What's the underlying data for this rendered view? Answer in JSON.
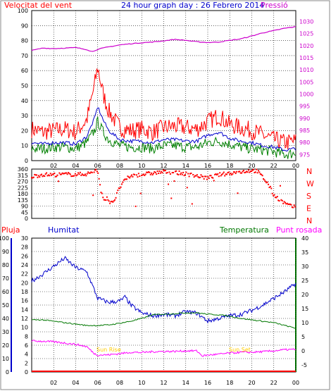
{
  "header": {
    "wind_label": "Velocitat del vent",
    "title": "24 hour graph day : 26 Febrero 2014",
    "pressure_label": "Pressió"
  },
  "lower_header": {
    "rain_label": "Pluja",
    "humidity_label": "Humitat",
    "temperature_label": "Temperatura",
    "dew_label": "Punt rosada"
  },
  "annotations": {
    "sunrise": "Sun Rise",
    "sunset": "Sun Set"
  },
  "colors": {
    "wind_gust": "#ff0000",
    "wind_avg": "#0000cc",
    "wind_min": "#008000",
    "pressure": "#cc00cc",
    "direction": "#ff0000",
    "humidity": "#0000cc",
    "temperature": "#007700",
    "dew": "#ff00ff",
    "rain": "#ff0000",
    "sun": "#ffcc00"
  },
  "chart_data": [
    {
      "type": "line",
      "name": "wind-pressure",
      "x_ticks": [
        "02",
        "04",
        "06",
        "08",
        "10",
        "12",
        "14",
        "16",
        "18",
        "20",
        "22",
        "00"
      ],
      "x_range": [
        0,
        24
      ],
      "y_left": {
        "ticks": [
          0,
          10,
          20,
          30,
          40,
          50,
          60,
          70,
          80,
          90,
          100
        ],
        "range": [
          0,
          100
        ]
      },
      "y_right": {
        "ticks": [
          975,
          980,
          985,
          990,
          995,
          1000,
          1005,
          1010,
          1015,
          1020,
          1025,
          1030
        ],
        "range": [
          972.5,
          1034.5
        ]
      },
      "series": [
        {
          "role": "gust",
          "axis": "left",
          "points": [
            [
              0,
              21
            ],
            [
              1,
              19
            ],
            [
              2,
              20
            ],
            [
              3,
              21
            ],
            [
              4,
              19
            ],
            [
              5,
              27
            ],
            [
              5.7,
              50
            ],
            [
              6,
              62
            ],
            [
              6.5,
              44
            ],
            [
              7,
              33
            ],
            [
              8,
              22
            ],
            [
              9,
              20
            ],
            [
              10,
              21
            ],
            [
              11,
              19
            ],
            [
              12,
              22
            ],
            [
              13,
              23
            ],
            [
              14,
              22
            ],
            [
              15,
              21
            ],
            [
              16,
              26
            ],
            [
              17,
              30
            ],
            [
              18,
              24
            ],
            [
              19,
              22
            ],
            [
              20,
              20
            ],
            [
              21,
              17
            ],
            [
              22,
              14
            ],
            [
              23,
              12
            ],
            [
              24,
              13
            ]
          ]
        },
        {
          "role": "avg",
          "axis": "left",
          "points": [
            [
              0,
              12
            ],
            [
              1,
              11
            ],
            [
              2,
              12
            ],
            [
              3,
              12
            ],
            [
              4,
              11
            ],
            [
              5,
              16
            ],
            [
              5.7,
              28
            ],
            [
              6,
              36
            ],
            [
              6.5,
              27
            ],
            [
              7,
              20
            ],
            [
              8,
              14
            ],
            [
              9,
              13
            ],
            [
              10,
              13
            ],
            [
              11,
              12
            ],
            [
              12,
              14
            ],
            [
              13,
              14
            ],
            [
              14,
              13
            ],
            [
              15,
              13
            ],
            [
              16,
              17
            ],
            [
              17,
              19
            ],
            [
              18,
              15
            ],
            [
              19,
              13
            ],
            [
              20,
              12
            ],
            [
              21,
              10
            ],
            [
              22,
              9
            ],
            [
              23,
              7
            ],
            [
              24,
              8
            ]
          ]
        },
        {
          "role": "min",
          "axis": "left",
          "points": [
            [
              0,
              8
            ],
            [
              1,
              8
            ],
            [
              2,
              9
            ],
            [
              3,
              9
            ],
            [
              4,
              8
            ],
            [
              5,
              12
            ],
            [
              5.7,
              20
            ],
            [
              6,
              26
            ],
            [
              6.5,
              19
            ],
            [
              7,
              14
            ],
            [
              8,
              10
            ],
            [
              9,
              9
            ],
            [
              10,
              9
            ],
            [
              11,
              8
            ],
            [
              12,
              10
            ],
            [
              13,
              10
            ],
            [
              14,
              9
            ],
            [
              15,
              9
            ],
            [
              16,
              12
            ],
            [
              17,
              13
            ],
            [
              18,
              11
            ],
            [
              19,
              9
            ],
            [
              20,
              8
            ],
            [
              21,
              7
            ],
            [
              22,
              6
            ],
            [
              23,
              4
            ],
            [
              24,
              5
            ]
          ]
        },
        {
          "role": "pressure",
          "axis": "right",
          "points": [
            [
              0,
              1018
            ],
            [
              1,
              1019
            ],
            [
              2,
              1018.8
            ],
            [
              3,
              1019
            ],
            [
              4,
              1019.2
            ],
            [
              5,
              1018.4
            ],
            [
              5.5,
              1017.5
            ],
            [
              6,
              1018.5
            ],
            [
              7,
              1019.5
            ],
            [
              8,
              1020.3
            ],
            [
              9,
              1020.8
            ],
            [
              10,
              1021.2
            ],
            [
              11,
              1021.5
            ],
            [
              12,
              1022
            ],
            [
              13,
              1022.6
            ],
            [
              14,
              1022.2
            ],
            [
              15,
              1021.6
            ],
            [
              16,
              1021.3
            ],
            [
              17,
              1021.5
            ],
            [
              18,
              1022.2
            ],
            [
              19,
              1022.8
            ],
            [
              20,
              1024
            ],
            [
              21,
              1025.3
            ],
            [
              22,
              1026.2
            ],
            [
              23,
              1027.2
            ],
            [
              24,
              1027.8
            ]
          ]
        }
      ]
    },
    {
      "type": "scatter",
      "name": "wind-direction",
      "y_left": {
        "ticks": [
          0,
          45,
          90,
          135,
          180,
          225,
          270,
          315,
          360
        ],
        "range": [
          0,
          360
        ]
      },
      "y_right_labels": [
        "N",
        "W",
        "S",
        "E",
        "N"
      ],
      "points": [
        [
          0,
          305
        ],
        [
          1,
          320
        ],
        [
          2,
          318
        ],
        [
          3,
          322
        ],
        [
          4,
          320
        ],
        [
          5,
          325
        ],
        [
          5.5,
          335
        ],
        [
          6,
          352
        ],
        [
          6.3,
          200
        ],
        [
          6.6,
          140
        ],
        [
          7,
          120
        ],
        [
          7.5,
          130
        ],
        [
          8,
          225
        ],
        [
          8.5,
          280
        ],
        [
          9,
          310
        ],
        [
          10,
          320
        ],
        [
          11,
          330
        ],
        [
          12,
          340
        ],
        [
          13,
          335
        ],
        [
          14,
          325
        ],
        [
          15,
          310
        ],
        [
          16,
          295
        ],
        [
          17,
          318
        ],
        [
          18,
          330
        ],
        [
          19,
          340
        ],
        [
          20,
          350
        ],
        [
          20.5,
          345
        ],
        [
          21,
          300
        ],
        [
          21.5,
          250
        ],
        [
          22,
          170
        ],
        [
          23,
          110
        ],
        [
          23.5,
          90
        ],
        [
          24,
          80
        ]
      ]
    },
    {
      "type": "line",
      "name": "humidity-temperature-dew",
      "x_ticks": [
        "02",
        "04",
        "06",
        "08",
        "10",
        "12",
        "14",
        "16",
        "18",
        "20",
        "22",
        "00"
      ],
      "y_left_rain": {
        "ticks": [
          0,
          2,
          4,
          6,
          8,
          10,
          12,
          14,
          16,
          18,
          20,
          22,
          24,
          26,
          28,
          30
        ],
        "range": [
          0,
          30
        ]
      },
      "y_left_humidity": {
        "ticks": [
          0,
          10,
          20,
          30,
          40,
          50,
          60,
          70,
          80,
          90,
          100
        ],
        "range": [
          0,
          100
        ]
      },
      "y_right": {
        "ticks": [
          -5,
          0,
          5,
          10,
          15,
          20,
          25,
          30,
          35,
          40
        ],
        "range": [
          -7.5,
          40
        ]
      },
      "series": [
        {
          "role": "humidity",
          "axis": "humidity",
          "points": [
            [
              0,
              68
            ],
            [
              1,
              73
            ],
            [
              2,
              79
            ],
            [
              3,
              85
            ],
            [
              4,
              78
            ],
            [
              5,
              75
            ],
            [
              5.5,
              65
            ],
            [
              6,
              55
            ],
            [
              7,
              52
            ],
            [
              8,
              53
            ],
            [
              8.5,
              56
            ],
            [
              9,
              50
            ],
            [
              10,
              44
            ],
            [
              11,
              42
            ],
            [
              12,
              43
            ],
            [
              13,
              42
            ],
            [
              14,
              45
            ],
            [
              15,
              44
            ],
            [
              16,
              38
            ],
            [
              17,
              40
            ],
            [
              18,
              42
            ],
            [
              19,
              43
            ],
            [
              20,
              46
            ],
            [
              21,
              50
            ],
            [
              22,
              55
            ],
            [
              23,
              60
            ],
            [
              24,
              66
            ]
          ]
        },
        {
          "role": "temperature",
          "axis": "right",
          "points": [
            [
              0,
              11
            ],
            [
              1,
              11
            ],
            [
              2,
              10.5
            ],
            [
              3,
              10
            ],
            [
              4,
              9.5
            ],
            [
              5,
              9
            ],
            [
              6,
              9
            ],
            [
              7,
              9.2
            ],
            [
              8,
              9.8
            ],
            [
              9,
              10.5
            ],
            [
              10,
              11.5
            ],
            [
              11,
              12.8
            ],
            [
              12,
              13
            ],
            [
              13,
              13.2
            ],
            [
              14,
              13.5
            ],
            [
              15,
              13.5
            ],
            [
              16,
              13
            ],
            [
              17,
              12.8
            ],
            [
              18,
              12.3
            ],
            [
              19,
              11.5
            ],
            [
              20,
              11
            ],
            [
              21,
              10.5
            ],
            [
              22,
              10
            ],
            [
              23,
              9
            ],
            [
              24,
              8
            ]
          ]
        },
        {
          "role": "dew",
          "axis": "right",
          "points": [
            [
              0,
              3.5
            ],
            [
              1,
              3.4
            ],
            [
              2,
              3.2
            ],
            [
              3,
              2.8
            ],
            [
              4,
              2.3
            ],
            [
              5,
              1.5
            ],
            [
              5.7,
              -1
            ],
            [
              6,
              -1.5
            ],
            [
              7,
              -1.4
            ],
            [
              8,
              -1
            ],
            [
              9,
              -0.5
            ],
            [
              10,
              -0.6
            ],
            [
              11,
              -0.3
            ],
            [
              12,
              -0.2
            ],
            [
              13,
              -0.2
            ],
            [
              14,
              0
            ],
            [
              15,
              0
            ],
            [
              15.5,
              -1.8
            ],
            [
              16,
              -1.5
            ],
            [
              17,
              -1.2
            ],
            [
              18,
              -0.8
            ],
            [
              19,
              -0.5
            ],
            [
              20,
              -0.5
            ],
            [
              21,
              -0.3
            ],
            [
              22,
              0
            ],
            [
              23,
              0.4
            ],
            [
              24,
              0.5
            ]
          ]
        },
        {
          "role": "rain",
          "axis": "rain",
          "points": [
            [
              0,
              0
            ],
            [
              24,
              0
            ]
          ]
        }
      ]
    }
  ]
}
